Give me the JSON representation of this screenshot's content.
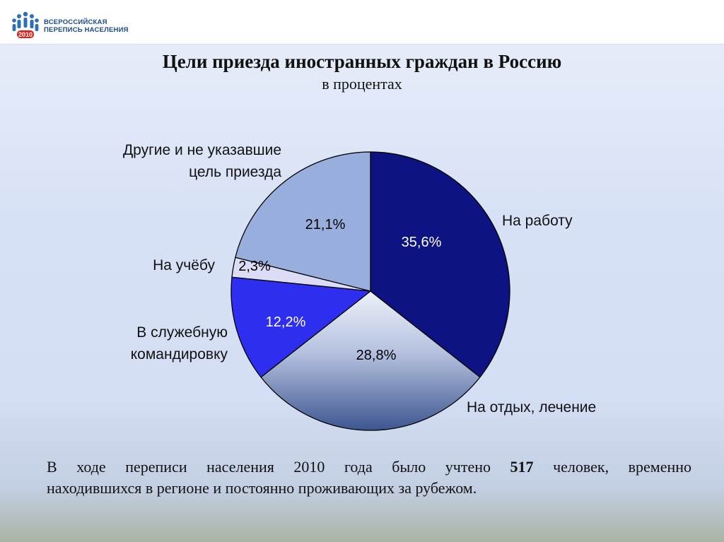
{
  "header": {
    "logo": {
      "name": "census-logo",
      "line1": "ВСЕРОССИЙСКАЯ",
      "line2": "ПЕРЕПИСЬ НАСЕЛЕНИЯ",
      "year": "2010"
    }
  },
  "chart_data": {
    "type": "pie",
    "title": "Цели приезда иностранных граждан в Россию",
    "subtitle": "в процентах",
    "unit": "%",
    "start_angle_deg": 0,
    "direction": "clockwise",
    "slices": [
      {
        "id": "work",
        "label_lines": [
          "На работу"
        ],
        "value": 35.6,
        "value_label": "35,6%",
        "color": "#0d1382",
        "gradient": false
      },
      {
        "id": "rest",
        "label_lines": [
          "На отдых, лечение"
        ],
        "value": 28.8,
        "value_label": "28,8%",
        "color": "#4a5f98",
        "gradient": true
      },
      {
        "id": "business",
        "label_lines": [
          "В служебную",
          "командировку"
        ],
        "value": 12.2,
        "value_label": "12,2%",
        "color": "#2e2ef0",
        "gradient": false
      },
      {
        "id": "study",
        "label_lines": [
          "На учёбу"
        ],
        "value": 2.3,
        "value_label": "2,3%",
        "color": "#dcdcf6",
        "gradient": false
      },
      {
        "id": "other",
        "label_lines": [
          "Другие и не указавшие",
          "цель приезда"
        ],
        "value": 21.1,
        "value_label": "21,1%",
        "color": "#98aedd",
        "gradient": false
      }
    ]
  },
  "footnote": {
    "before": "В ходе переписи населения 2010 года было учтено ",
    "number": "517",
    "after": " человек, временно",
    "line2": "находившихся в регионе и постоянно проживающих за рубежом."
  }
}
